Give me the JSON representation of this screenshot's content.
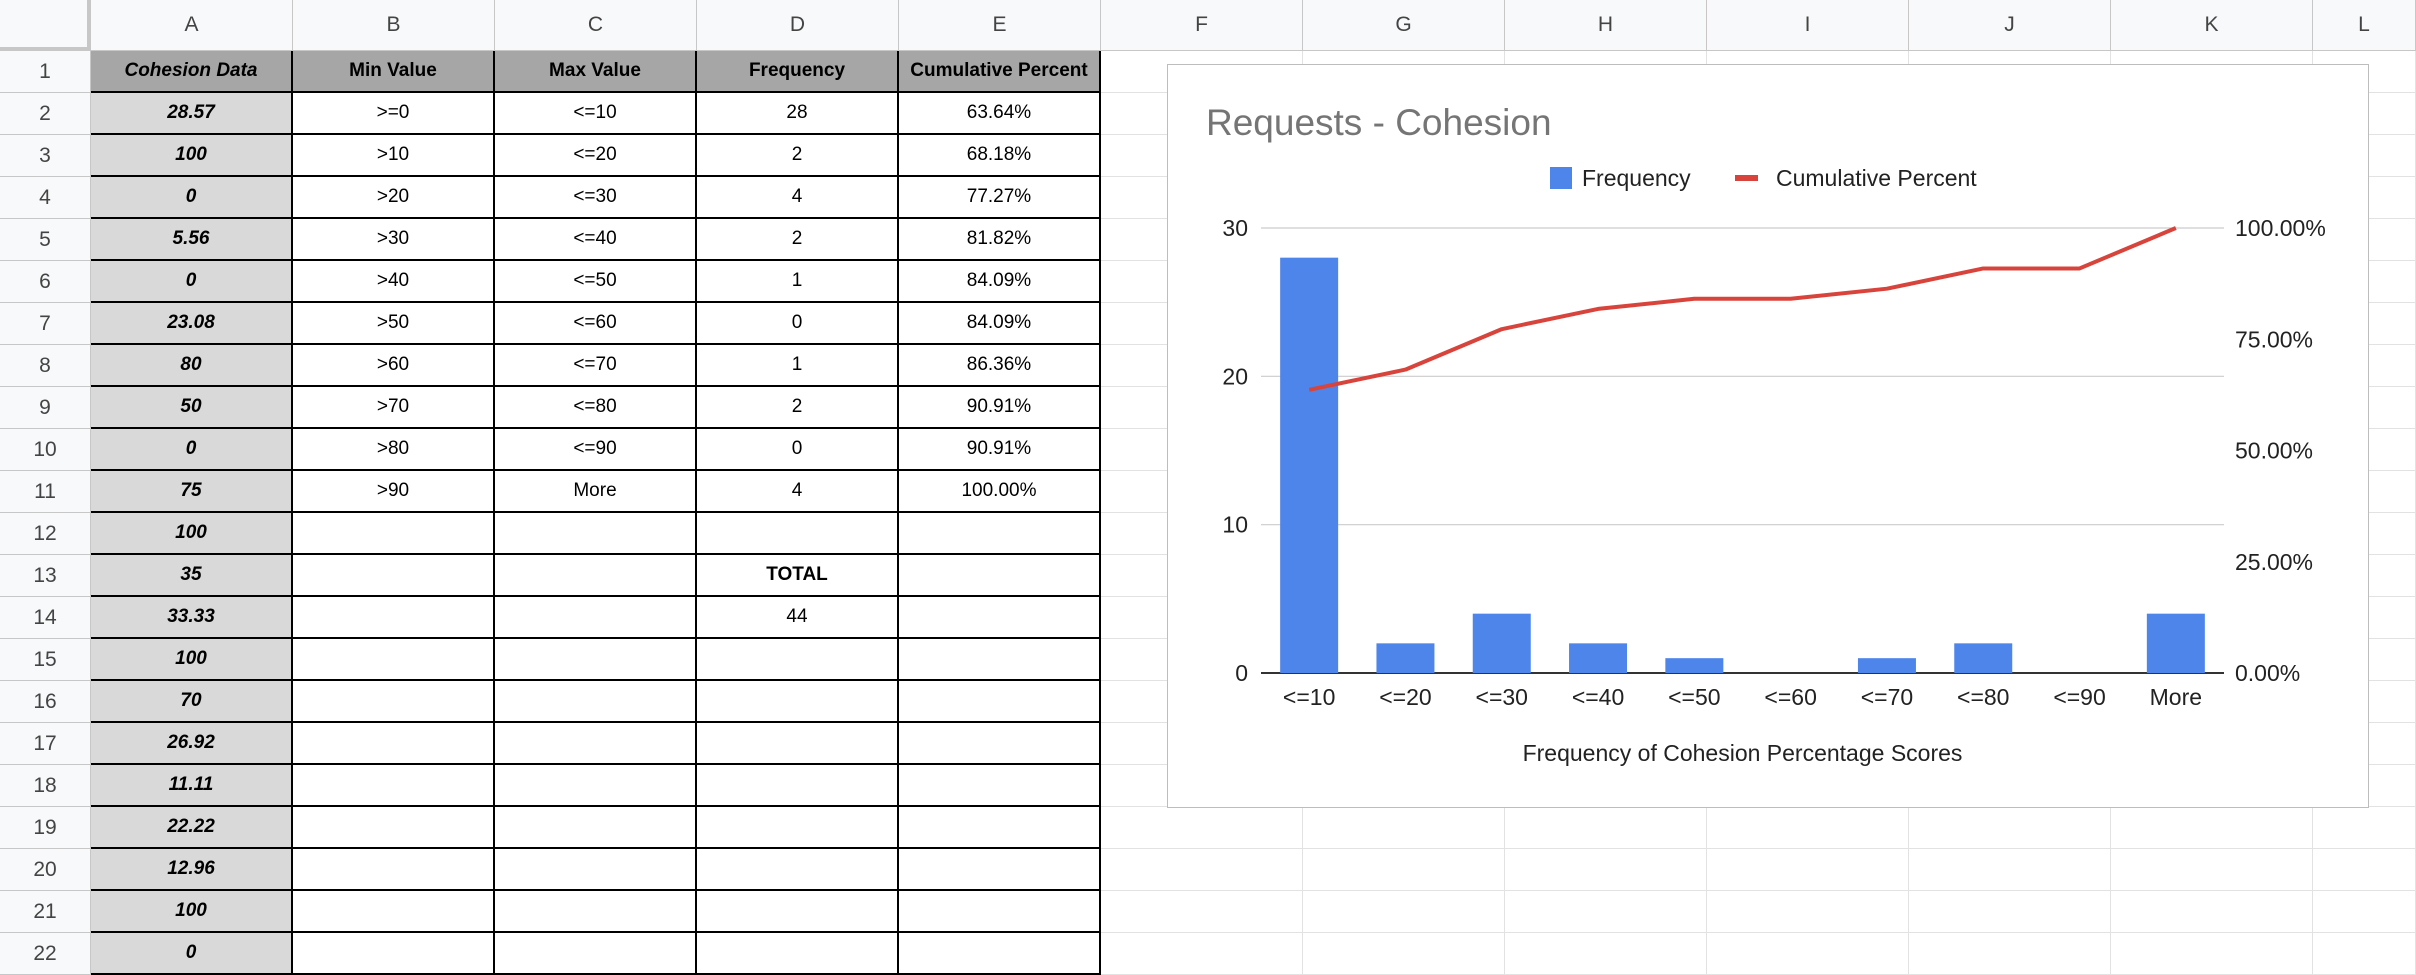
{
  "columns": [
    "A",
    "B",
    "C",
    "D",
    "E",
    "F",
    "G",
    "H",
    "I",
    "J",
    "K",
    "L"
  ],
  "rows": [
    "1",
    "2",
    "3",
    "4",
    "5",
    "6",
    "7",
    "8",
    "9",
    "10",
    "11",
    "12",
    "13",
    "14",
    "15",
    "16",
    "17",
    "18",
    "19",
    "20",
    "21",
    "22"
  ],
  "table": {
    "headers": [
      "Cohesion Data",
      "Min Value",
      "Max Value",
      "Frequency",
      "Cumulative Percent"
    ],
    "cohesion_data": [
      "28.57",
      "100",
      "0",
      "5.56",
      "0",
      "23.08",
      "80",
      "50",
      "0",
      "75",
      "100",
      "35",
      "33.33",
      "100",
      "70",
      "26.92",
      "11.11",
      "22.22",
      "12.96",
      "100",
      "0"
    ],
    "bins": [
      {
        "min": ">=0",
        "max": "<=10",
        "frequency": "28",
        "cumulative": "63.64%"
      },
      {
        "min": ">10",
        "max": "<=20",
        "frequency": "2",
        "cumulative": "68.18%"
      },
      {
        "min": ">20",
        "max": "<=30",
        "frequency": "4",
        "cumulative": "77.27%"
      },
      {
        "min": ">30",
        "max": "<=40",
        "frequency": "2",
        "cumulative": "81.82%"
      },
      {
        "min": ">40",
        "max": "<=50",
        "frequency": "1",
        "cumulative": "84.09%"
      },
      {
        "min": ">50",
        "max": "<=60",
        "frequency": "0",
        "cumulative": "84.09%"
      },
      {
        "min": ">60",
        "max": "<=70",
        "frequency": "1",
        "cumulative": "86.36%"
      },
      {
        "min": ">70",
        "max": "<=80",
        "frequency": "2",
        "cumulative": "90.91%"
      },
      {
        "min": ">80",
        "max": "<=90",
        "frequency": "0",
        "cumulative": "90.91%"
      },
      {
        "min": ">90",
        "max": "More",
        "frequency": "4",
        "cumulative": "100.00%"
      }
    ],
    "total_label": "TOTAL",
    "total_value": "44"
  },
  "chart_data": {
    "type": "bar",
    "title": "Requests - Cohesion",
    "xlabel": "Frequency of Cohesion Percentage Scores",
    "ylabel": "",
    "categories": [
      "<=10",
      "<=20",
      "<=30",
      "<=40",
      "<=50",
      "<=60",
      "<=70",
      "<=80",
      "<=90",
      "More"
    ],
    "series": [
      {
        "name": "Frequency",
        "type": "bar",
        "axis": "left",
        "color": "#4e85ea",
        "values": [
          28,
          2,
          4,
          2,
          1,
          0,
          1,
          2,
          0,
          4
        ]
      },
      {
        "name": "Cumulative Percent",
        "type": "line",
        "axis": "right",
        "color": "#d8443b",
        "values": [
          63.64,
          68.18,
          77.27,
          81.82,
          84.09,
          84.09,
          86.36,
          90.91,
          90.91,
          100.0
        ]
      }
    ],
    "ylim": [
      0,
      30
    ],
    "yticks": [
      "0",
      "10",
      "20",
      "30"
    ],
    "y2lim": [
      0,
      100
    ],
    "y2ticks": [
      "0.00%",
      "25.00%",
      "50.00%",
      "75.00%",
      "100.00%"
    ],
    "legend_position": "top",
    "grid": true
  }
}
